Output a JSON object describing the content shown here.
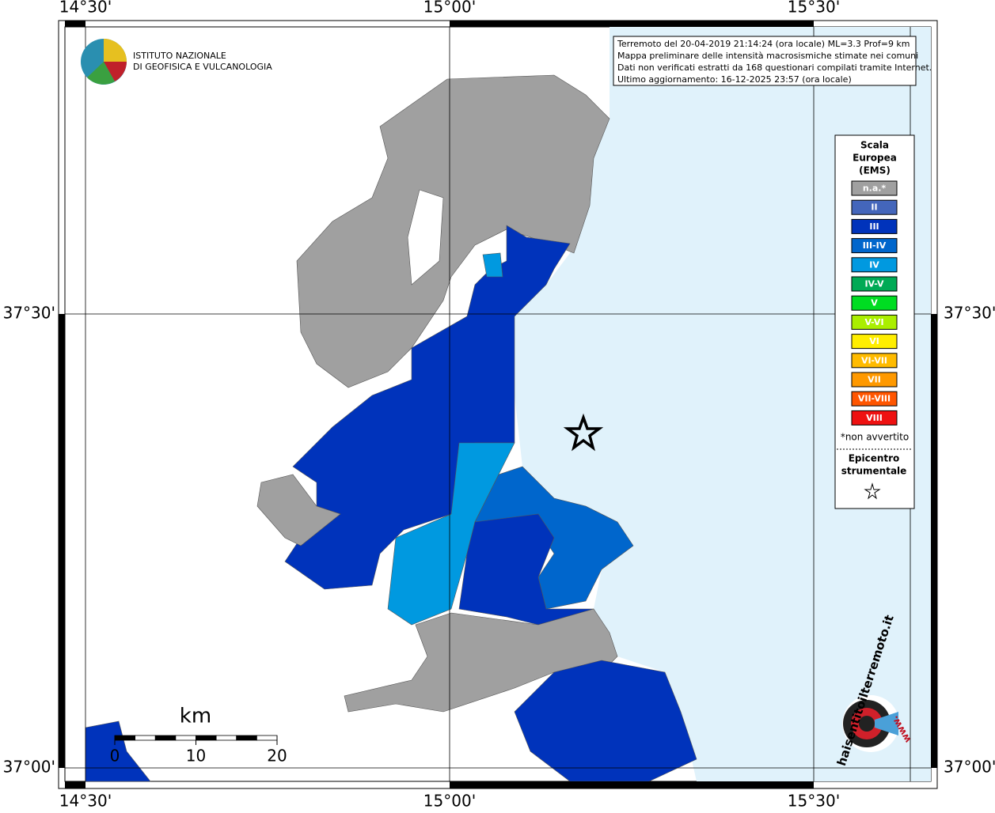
{
  "map": {
    "lon_labels": [
      "14°30'",
      "15°00'",
      "15°30'"
    ],
    "lat_labels": [
      "37°30'",
      "37°00'"
    ],
    "info": [
      "Terremoto del 20-04-2019 21:14:24 (ora locale) ML=3.3 Prof=9 km",
      "Mappa preliminare delle intensità macrosismiche stimate nei comuni",
      "Dati non verificati estratti da 168 questionari compilati tramite Internet.",
      "Ultimo aggiornamento: 16-12-2025 23:57 (ora locale)"
    ],
    "institute": [
      "ISTITUTO NAZIONALE",
      "DI GEOFISICA E VULCANOLOGIA"
    ],
    "legend": {
      "title": [
        "Scala",
        "Europea",
        "(EMS)"
      ],
      "items": [
        {
          "label": "n.a.*",
          "color": "#a0a0a0"
        },
        {
          "label": "II",
          "color": "#4466bb"
        },
        {
          "label": "III",
          "color": "#0033bb"
        },
        {
          "label": "III-IV",
          "color": "#0066cc"
        },
        {
          "label": "IV",
          "color": "#0099e0"
        },
        {
          "label": "IV-V",
          "color": "#00aa55"
        },
        {
          "label": "V",
          "color": "#00dd22"
        },
        {
          "label": "V-VI",
          "color": "#aaee00"
        },
        {
          "label": "VI",
          "color": "#ffee00"
        },
        {
          "label": "VI-VII",
          "color": "#ffbb00"
        },
        {
          "label": "VII",
          "color": "#ff9900"
        },
        {
          "label": "VII-VIII",
          "color": "#ff5500"
        },
        {
          "label": "VIII",
          "color": "#ee1111"
        }
      ],
      "note": "*non avvertito",
      "epicenter": [
        "Epicentro",
        "strumentale"
      ]
    },
    "scale": {
      "unit": "km",
      "ticks": [
        0,
        10,
        20
      ]
    },
    "badge": {
      "site": "haisentitoilterremoto.it",
      "prefix": "www."
    }
  }
}
